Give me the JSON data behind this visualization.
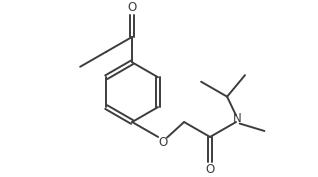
{
  "bg_color": "#ffffff",
  "line_color": "#3d3d3d",
  "o_color": "#3d3d3d",
  "n_color": "#3d3d3d",
  "line_width": 1.4,
  "figsize": [
    3.18,
    1.77
  ],
  "dpi": 100,
  "xlim": [
    0,
    10
  ],
  "ylim": [
    0,
    5.56
  ]
}
